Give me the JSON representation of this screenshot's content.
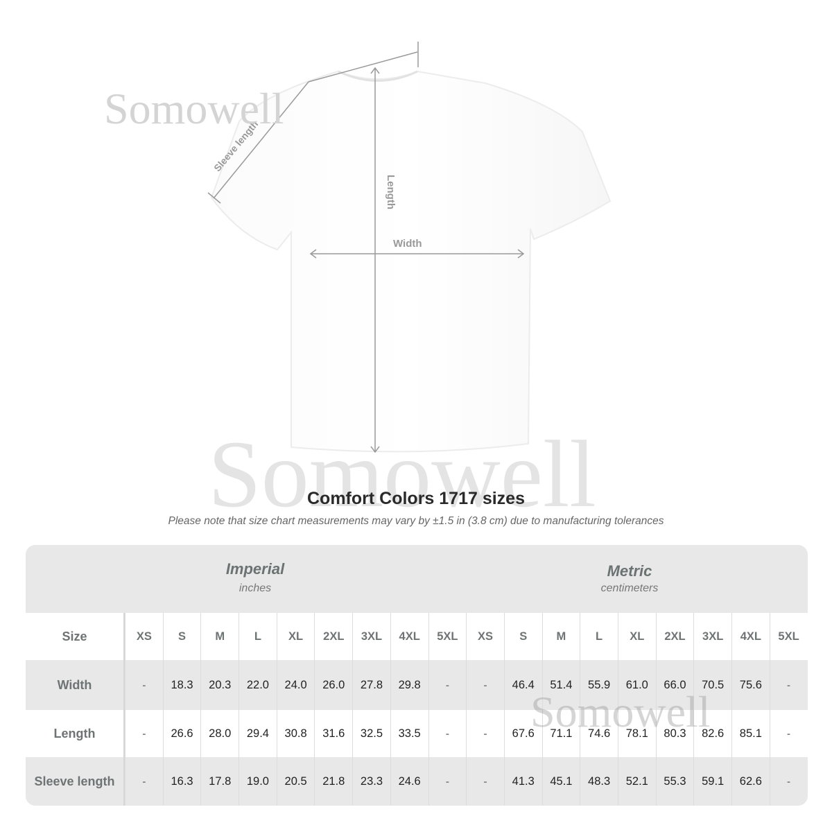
{
  "watermark": "Somowell",
  "diagram": {
    "sleeve_label": "Sleeve length",
    "length_label": "Length",
    "width_label": "Width"
  },
  "title": "Comfort Colors 1717 sizes",
  "note": "Please note that size chart measurements may vary by ±1.5 in (3.8 cm) due to manufacturing tolerances",
  "table": {
    "imperial": {
      "title": "Imperial",
      "unit": "inches"
    },
    "metric": {
      "title": "Metric",
      "unit": "centimeters"
    },
    "size_label": "Size",
    "sizes": [
      "XS",
      "S",
      "M",
      "L",
      "XL",
      "2XL",
      "3XL",
      "4XL",
      "5XL"
    ],
    "rows": [
      {
        "label": "Width",
        "imperial": [
          "-",
          "18.3",
          "20.3",
          "22.0",
          "24.0",
          "26.0",
          "27.8",
          "29.8",
          "-"
        ],
        "metric": [
          "-",
          "46.4",
          "51.4",
          "55.9",
          "61.0",
          "66.0",
          "70.5",
          "75.6",
          "-"
        ]
      },
      {
        "label": "Length",
        "imperial": [
          "-",
          "26.6",
          "28.0",
          "29.4",
          "30.8",
          "31.6",
          "32.5",
          "33.5",
          "-"
        ],
        "metric": [
          "-",
          "67.6",
          "71.1",
          "74.6",
          "78.1",
          "80.3",
          "82.6",
          "85.1",
          "-"
        ]
      },
      {
        "label": "Sleeve length",
        "imperial": [
          "-",
          "16.3",
          "17.8",
          "19.0",
          "20.5",
          "21.8",
          "23.3",
          "24.6",
          "-"
        ],
        "metric": [
          "-",
          "41.3",
          "45.1",
          "48.3",
          "52.1",
          "55.3",
          "59.1",
          "62.6",
          "-"
        ]
      }
    ]
  },
  "colors": {
    "band": "#e8e8e8",
    "label": "#6e7373",
    "watermark": "#d4d4d4"
  }
}
